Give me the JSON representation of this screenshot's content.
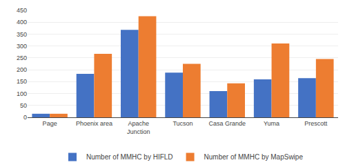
{
  "chart_data": {
    "type": "bar",
    "categories": [
      "Page",
      "Phoenix area",
      "Apache\nJunction",
      "Tucson",
      "Casa Grande",
      "Yuma",
      "Prescott"
    ],
    "series": [
      {
        "name": "Number of MMHC by HIFLD",
        "color": "#4472C4",
        "values": [
          15,
          183,
          368,
          188,
          110,
          160,
          165
        ]
      },
      {
        "name": "Number of MMHC by MapSwipe",
        "color": "#ED7D31",
        "values": [
          15,
          267,
          425,
          225,
          143,
          311,
          245
        ]
      }
    ],
    "ylim": [
      0,
      450
    ],
    "yticks": [
      0,
      50,
      100,
      150,
      200,
      250,
      300,
      350,
      400,
      450
    ],
    "grid": true,
    "legend": "bottom"
  }
}
